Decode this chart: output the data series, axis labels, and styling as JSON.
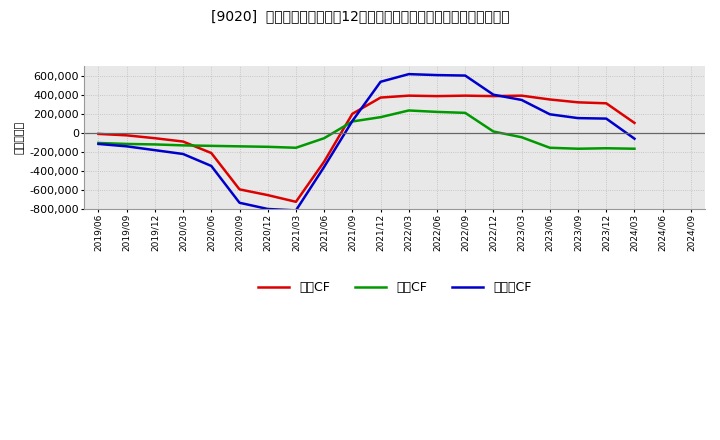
{
  "title": "[9020]  キャッシュフローの12か月移動合計の対前年同期増減額の推移",
  "ylabel": "（百万円）",
  "background_color": "#ffffff",
  "plot_bg_color": "#e8e8e8",
  "grid_color": "#bbbbbb",
  "x_labels": [
    "2019/06",
    "2019/09",
    "2019/12",
    "2020/03",
    "2020/06",
    "2020/09",
    "2020/12",
    "2021/03",
    "2021/06",
    "2021/09",
    "2021/12",
    "2022/03",
    "2022/06",
    "2022/09",
    "2022/12",
    "2023/03",
    "2023/06",
    "2023/09",
    "2023/12",
    "2024/03",
    "2024/06",
    "2024/09"
  ],
  "operating_cf": [
    -10000,
    -25000,
    -55000,
    -90000,
    -210000,
    -590000,
    -650000,
    -720000,
    -300000,
    200000,
    370000,
    390000,
    385000,
    390000,
    385000,
    390000,
    350000,
    320000,
    310000,
    105000,
    null,
    null
  ],
  "investing_cf": [
    -105000,
    -115000,
    -120000,
    -130000,
    -135000,
    -140000,
    -145000,
    -155000,
    -55000,
    120000,
    165000,
    235000,
    220000,
    210000,
    15000,
    -45000,
    -155000,
    -165000,
    -160000,
    -165000,
    null,
    null
  ],
  "free_cf": [
    -115000,
    -140000,
    -180000,
    -220000,
    -345000,
    -730000,
    -795000,
    -810000,
    -355000,
    125000,
    535000,
    615000,
    605000,
    600000,
    400000,
    345000,
    195000,
    155000,
    150000,
    -60000,
    null,
    null
  ],
  "operating_color": "#dd0000",
  "investing_color": "#009900",
  "free_color": "#0000cc",
  "ylim": [
    -800000,
    700000
  ],
  "yticks": [
    -800000,
    -600000,
    -400000,
    -200000,
    0,
    200000,
    400000,
    600000
  ],
  "legend_labels": [
    "営業CF",
    "投資CF",
    "フリーCF"
  ]
}
